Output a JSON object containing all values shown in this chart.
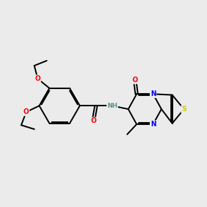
{
  "background_color": "#ebebeb",
  "bond_color": "#000000",
  "atom_colors": {
    "O": "#ff0000",
    "N": "#0000ff",
    "S": "#cccc00",
    "H": "#5a9090"
  },
  "figsize": [
    3.0,
    3.0
  ],
  "dpi": 100
}
